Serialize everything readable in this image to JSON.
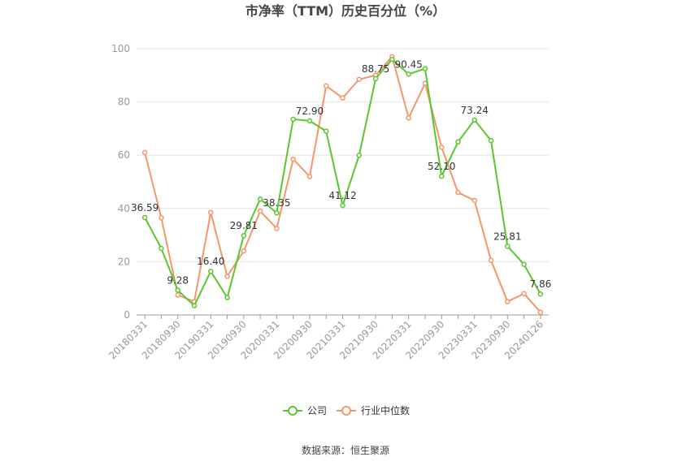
{
  "chart_data": {
    "type": "line",
    "title": "市净率（TTM）历史百分位（%）",
    "categories": [
      "20180331",
      null,
      "20180930",
      null,
      "20190331",
      null,
      "20190930",
      null,
      "20200331",
      null,
      "20200930",
      null,
      "20210331",
      null,
      "20210930",
      null,
      "20220331",
      null,
      "20220930",
      null,
      "20230331",
      null,
      "20230930",
      null,
      "20240126"
    ],
    "series": [
      {
        "name": "公司",
        "color": "#5ac630",
        "values": [
          36.59,
          25,
          9.28,
          3.5,
          16.4,
          6.5,
          29.81,
          43.5,
          38.35,
          73.5,
          72.9,
          69,
          41.12,
          60,
          88.75,
          96,
          90.45,
          92.5,
          52.1,
          65,
          73.24,
          65.5,
          25.81,
          19,
          7.86
        ],
        "value_labels": [
          "36.59",
          null,
          "9.28",
          null,
          "16.40",
          null,
          "29.81",
          null,
          "38.35",
          null,
          "72.90",
          null,
          "41.12",
          null,
          "88.75",
          null,
          "90.45",
          null,
          "52.10",
          null,
          "73.24",
          null,
          "25.81",
          null,
          "7.86"
        ]
      },
      {
        "name": "行业中位数",
        "color": "#f4956b",
        "values": [
          61,
          36.5,
          7.5,
          5,
          38.5,
          14.5,
          24,
          39,
          32.5,
          58.5,
          52,
          86,
          81.5,
          88.5,
          90,
          97,
          74,
          87,
          63,
          46,
          43,
          20.5,
          5,
          8,
          1
        ]
      }
    ],
    "ylim": [
      0,
      100
    ],
    "yticks": [
      0,
      20,
      40,
      60,
      80,
      100
    ],
    "grid": true,
    "source": "数据来源：恒生聚源"
  }
}
